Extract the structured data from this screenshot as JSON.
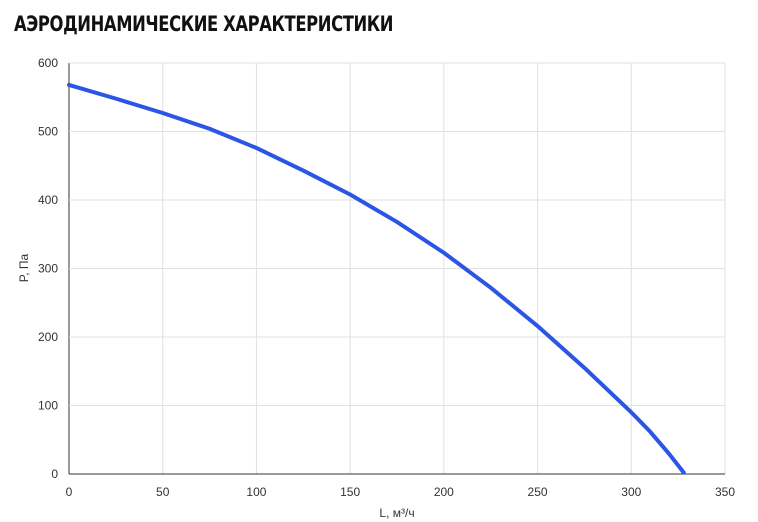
{
  "page": {
    "title": "АЭРОДИНАМИЧЕСКИЕ ХАРАКТЕРИСТИКИ"
  },
  "chart_data": {
    "type": "line",
    "xlabel": "L, м³/ч",
    "ylabel": "P, Па",
    "xlim": [
      0,
      350
    ],
    "ylim": [
      0,
      600
    ],
    "xticks": [
      0,
      50,
      100,
      150,
      200,
      250,
      300,
      350
    ],
    "yticks": [
      0,
      100,
      200,
      300,
      400,
      500,
      600
    ],
    "grid": true,
    "line_color": "#2a55e5",
    "series": [
      {
        "x": [
          0,
          25,
          50,
          75,
          100,
          125,
          150,
          175,
          200,
          225,
          250,
          275,
          300,
          310,
          320,
          328
        ],
        "y": [
          568,
          548,
          527,
          504,
          476,
          443,
          408,
          368,
          323,
          272,
          216,
          155,
          90,
          62,
          30,
          2
        ]
      }
    ]
  }
}
